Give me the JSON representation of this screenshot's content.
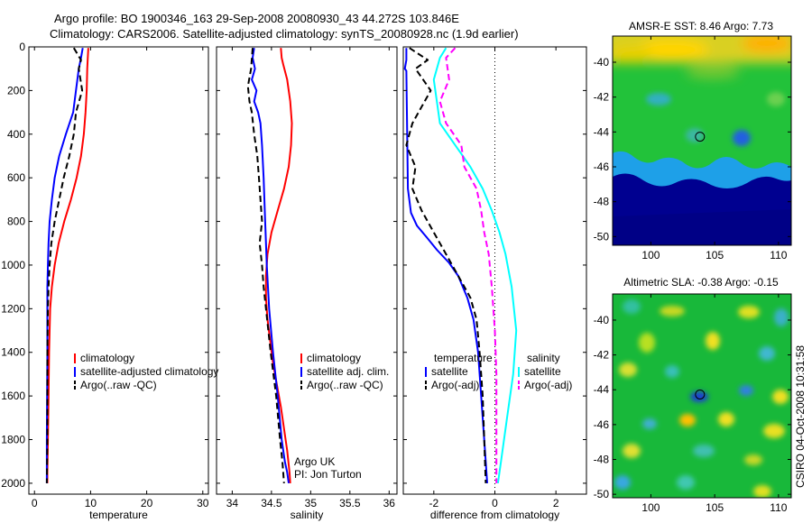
{
  "header": {
    "line1": "Argo profile: BO 1900346_163 29-Sep-2008 20080930_43 44.272S 103.846E",
    "line2": "Climatology: CARS2006. Satellite-adjusted climatology: synTS_20080928.nc (1.9d earlier)"
  },
  "side_stamp": "CSIRO 04-Oct-2008 10:31:58",
  "colors": {
    "red": "#ff0000",
    "blue": "#0000ff",
    "black": "#000000",
    "cyan": "#00ffff",
    "magenta": "#ff00ff"
  },
  "chart_data": [
    {
      "id": "temperature",
      "type": "line",
      "xlabel": "temperature",
      "xlim": [
        -1,
        31
      ],
      "ylim": [
        2050,
        0
      ],
      "xticks": [
        0,
        10,
        20,
        30
      ],
      "yticks": [
        0,
        200,
        400,
        600,
        800,
        1000,
        1200,
        1400,
        1600,
        1800,
        2000
      ],
      "legend": {
        "placement": "lower-right",
        "items": [
          {
            "label": "climatology",
            "color": "#ff0000",
            "style": "solid"
          },
          {
            "label": "satellite-adjusted climatology",
            "color": "#0000ff",
            "style": "solid"
          },
          {
            "label": "Argo(..raw -QC)",
            "color": "#000000",
            "style": "dashed"
          }
        ]
      },
      "series": [
        {
          "name": "climatology",
          "color": "#ff0000",
          "style": "solid",
          "x": [
            9.6,
            9.5,
            9.4,
            9.3,
            9.1,
            8.8,
            8.3,
            7.5,
            6.5,
            5.3,
            4.3,
            3.6,
            3.1,
            2.8,
            2.6,
            2.5,
            2.4,
            2.3,
            2.3
          ],
          "y": [
            5,
            50,
            100,
            200,
            300,
            400,
            500,
            600,
            700,
            800,
            900,
            1000,
            1100,
            1200,
            1400,
            1600,
            1800,
            1950,
            2000
          ]
        },
        {
          "name": "satellite-adjusted climatology",
          "color": "#0000ff",
          "style": "solid",
          "x": [
            8.6,
            8.3,
            7.9,
            7.4,
            6.9,
            5.6,
            4.4,
            3.6,
            3.1,
            2.7,
            2.5,
            2.4,
            2.3,
            2.3,
            2.3,
            2.2,
            2.2
          ],
          "y": [
            5,
            50,
            100,
            200,
            300,
            400,
            500,
            600,
            700,
            800,
            900,
            1000,
            1100,
            1200,
            1400,
            1800,
            2000
          ]
        },
        {
          "name": "Argo(..raw -QC)",
          "color": "#000000",
          "style": "dashed",
          "x": [
            7.0,
            8.3,
            7.9,
            8.5,
            7.4,
            7.0,
            6.2,
            5.2,
            4.4,
            3.6,
            3.0,
            2.7,
            2.5,
            2.4,
            2.3,
            2.3,
            2.2
          ],
          "y": [
            5,
            60,
            100,
            200,
            300,
            400,
            500,
            600,
            700,
            800,
            900,
            1000,
            1100,
            1200,
            1400,
            1800,
            2000
          ]
        }
      ]
    },
    {
      "id": "salinity",
      "type": "line",
      "xlabel": "salinity",
      "xlim": [
        33.8,
        36.1
      ],
      "ylim": [
        2050,
        0
      ],
      "xticks": [
        34,
        34.5,
        35,
        35.5,
        36
      ],
      "yticks": [
        0,
        200,
        400,
        600,
        800,
        1000,
        1200,
        1400,
        1600,
        1800,
        2000
      ],
      "legend": {
        "placement": "lower-right",
        "items": [
          {
            "label": "climatology",
            "color": "#ff0000",
            "style": "solid"
          },
          {
            "label": "satellite adj. clim.",
            "color": "#0000ff",
            "style": "solid"
          },
          {
            "label": "Argo(..raw -QC)",
            "color": "#000000",
            "style": "dashed"
          }
        ]
      },
      "annotations": [
        "Argo UK",
        "PI: Jon Turton"
      ],
      "series": [
        {
          "name": "climatology",
          "color": "#ff0000",
          "style": "solid",
          "x": [
            34.62,
            34.63,
            34.65,
            34.7,
            34.74,
            34.76,
            34.75,
            34.72,
            34.66,
            34.58,
            34.5,
            34.45,
            34.43,
            34.43,
            34.45,
            34.52,
            34.62,
            34.7,
            34.73,
            34.74
          ],
          "y": [
            5,
            50,
            80,
            150,
            250,
            350,
            450,
            550,
            650,
            750,
            850,
            950,
            1050,
            1150,
            1250,
            1450,
            1650,
            1850,
            1950,
            2000
          ]
        },
        {
          "name": "satellite adj. clim.",
          "color": "#0000ff",
          "style": "solid",
          "x": [
            34.28,
            34.26,
            34.29,
            34.25,
            34.31,
            34.28,
            34.33,
            34.36,
            34.38,
            34.4,
            34.42,
            34.44,
            34.47,
            34.52,
            34.58,
            34.63,
            34.67,
            34.7,
            34.72
          ],
          "y": [
            5,
            50,
            100,
            150,
            200,
            250,
            300,
            350,
            450,
            600,
            800,
            1000,
            1200,
            1400,
            1600,
            1800,
            1900,
            1950,
            2000
          ]
        },
        {
          "name": "Argo(..raw -QC)",
          "color": "#000000",
          "style": "dashed",
          "x": [
            34.26,
            34.24,
            34.2,
            34.22,
            34.25,
            34.28,
            34.32,
            34.34,
            34.36,
            34.38,
            34.35,
            34.38,
            34.4,
            34.43,
            34.49,
            34.56,
            34.61,
            34.64,
            34.65,
            34.66
          ],
          "y": [
            5,
            100,
            180,
            250,
            300,
            400,
            500,
            600,
            700,
            800,
            900,
            1000,
            1100,
            1200,
            1400,
            1600,
            1800,
            1900,
            1950,
            2000
          ]
        }
      ]
    },
    {
      "id": "difference",
      "type": "line",
      "xlabel": "difference from climatology",
      "xlim": [
        -3,
        3
      ],
      "ylim": [
        2050,
        0
      ],
      "xticks": [
        -2,
        0,
        2
      ],
      "yticks": [
        0,
        200,
        400,
        600,
        800,
        1000,
        1200,
        1400,
        1600,
        1800,
        2000
      ],
      "reference_line": {
        "x": 0,
        "style": "dotted"
      },
      "legend": {
        "placement": "lower-center",
        "items": [
          {
            "label": "temperature",
            "color": null,
            "style": "heading"
          },
          {
            "label": "satellite",
            "color": "#0000ff",
            "style": "solid"
          },
          {
            "label": "Argo(-adj)",
            "color": "#000000",
            "style": "dashed"
          },
          {
            "label": "salinity",
            "color": null,
            "style": "heading"
          },
          {
            "label": "satellite",
            "color": "#00ffff",
            "style": "solid"
          },
          {
            "label": "Argo(-adj)",
            "color": "#ff00ff",
            "style": "dashed"
          }
        ]
      },
      "series": [
        {
          "name": "temperature satellite",
          "color": "#0000ff",
          "style": "solid",
          "x": [
            -2.9,
            -2.9,
            -2.95,
            -2.9,
            -2.85,
            -2.75,
            -2.55,
            -2.25,
            -1.9,
            -1.5,
            -1.2,
            -0.9,
            -0.7,
            -0.55,
            -0.45,
            -0.35,
            -0.25
          ],
          "y": [
            5,
            60,
            100,
            110,
            650,
            760,
            820,
            870,
            930,
            990,
            1050,
            1150,
            1250,
            1400,
            1600,
            1800,
            2000
          ]
        },
        {
          "name": "temperature Argo(-adj)",
          "color": "#000000",
          "style": "dashed",
          "x": [
            -2.8,
            -2.2,
            -2.6,
            -2.1,
            -2.7,
            -2.9,
            -2.6,
            -2.7,
            -2.4,
            -2.0,
            -1.6,
            -1.2,
            -0.8,
            -0.6,
            -0.5,
            -0.4,
            -0.35,
            -0.3
          ],
          "y": [
            5,
            60,
            100,
            200,
            350,
            450,
            550,
            650,
            750,
            850,
            950,
            1050,
            1150,
            1250,
            1400,
            1600,
            1800,
            2000
          ]
        },
        {
          "name": "salinity satellite",
          "color": "#00ffff",
          "style": "solid",
          "x": [
            -1.6,
            -1.8,
            -2.0,
            -1.9,
            -1.8,
            -1.3,
            -0.8,
            -0.4,
            -0.1,
            0.15,
            0.35,
            0.55,
            0.7,
            0.6,
            0.4,
            0.2,
            0.1
          ],
          "y": [
            5,
            50,
            150,
            250,
            350,
            450,
            550,
            650,
            750,
            850,
            950,
            1100,
            1300,
            1500,
            1700,
            1900,
            2000
          ]
        },
        {
          "name": "salinity Argo(-adj)",
          "color": "#ff00ff",
          "style": "dashed",
          "x": [
            -1.3,
            -1.6,
            -1.5,
            -1.8,
            -1.6,
            -1.1,
            -1.0,
            -0.6,
            -0.45,
            -0.35,
            -0.2,
            -0.1,
            0.0,
            0.05,
            0.05,
            0.05
          ],
          "y": [
            5,
            50,
            150,
            250,
            350,
            450,
            550,
            650,
            750,
            850,
            950,
            1100,
            1300,
            1500,
            1800,
            2000
          ]
        }
      ]
    },
    {
      "id": "amsr_sst_map",
      "type": "heatmap",
      "title": "AMSR-E SST: 8.46 Argo: 7.73",
      "xlim": [
        97,
        111
      ],
      "ylim": [
        -50.5,
        -38.5
      ],
      "xticks": [
        100,
        105,
        110
      ],
      "yticks": [
        -40,
        -42,
        -44,
        -46,
        -48,
        -50
      ],
      "marker": {
        "lon": 103.846,
        "lat": -44.272
      },
      "colors": {
        "warm": "#ffd400",
        "mid": "#22c23a",
        "front": "#22a8e8",
        "cold": "#000090"
      }
    },
    {
      "id": "altimetric_sla_map",
      "type": "heatmap",
      "title": "Altimetric SLA: -0.38 Argo: -0.15",
      "xlim": [
        97,
        111
      ],
      "ylim": [
        -50.2,
        -38.5
      ],
      "xticks": [
        100,
        105,
        110
      ],
      "yticks": [
        -40,
        -42,
        -44,
        -46,
        -48,
        -50
      ],
      "marker": {
        "lon": 103.846,
        "lat": -44.272
      },
      "colors": {
        "background": "#18b83a",
        "high": "#ffe000",
        "low": "#22a0e8"
      }
    }
  ]
}
